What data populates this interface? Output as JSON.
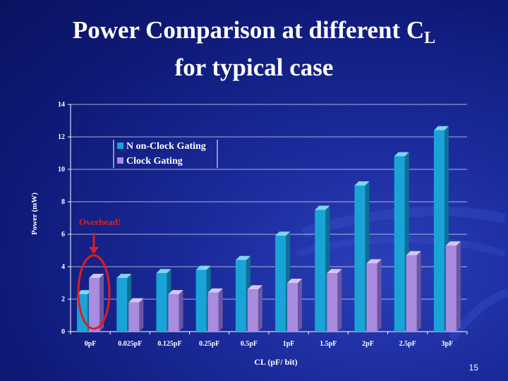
{
  "slide": {
    "title_main": "Power Comparison at different C",
    "title_subscript": "L",
    "title_line2": "for typical case",
    "page_number": "15"
  },
  "colors": {
    "non_clock_gating": "#1aa3d6",
    "clock_gating": "#a98be0",
    "annotation": "#e01c1c",
    "background": "#1a2a9a"
  },
  "chart_data": {
    "type": "bar",
    "categories": [
      "0pF",
      "0.025pF",
      "0.125pF",
      "0.25pF",
      "0.5pF",
      "1pF",
      "1.5pF",
      "2pF",
      "2.5pF",
      "3pF"
    ],
    "series": [
      {
        "name": "N on-Clock Gating",
        "values": [
          2.3,
          3.3,
          3.6,
          3.8,
          4.4,
          5.9,
          7.5,
          9.0,
          10.8,
          12.4
        ]
      },
      {
        "name": "Clock Gating",
        "values": [
          3.3,
          1.8,
          2.3,
          2.4,
          2.6,
          3.0,
          3.6,
          4.2,
          4.7,
          5.3
        ]
      }
    ],
    "xlabel": "CL (pF/ bit)",
    "ylabel": "Power (mW)",
    "ylim": [
      0,
      14
    ],
    "yticks": [
      0,
      2,
      4,
      6,
      8,
      10,
      12,
      14
    ],
    "grid": true,
    "legend_position": "top-left",
    "annotation": "Overhead!"
  }
}
